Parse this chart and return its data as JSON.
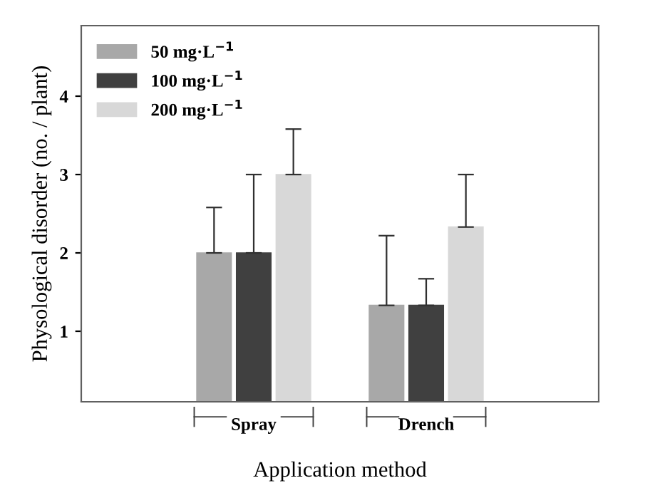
{
  "chart_data": {
    "type": "bar",
    "xlabel": "Application method",
    "ylabel": "Physological disorder (no. / plant)",
    "categories": [
      "Spray",
      "Drench"
    ],
    "series": [
      {
        "name": "50 mg·L$^{−1}$",
        "color": "#a8a8a8",
        "values": [
          2,
          1.33
        ],
        "errors": [
          [
            2,
            2.58
          ],
          [
            1.33,
            2.22
          ]
        ]
      },
      {
        "name": "100 mg·L$^{−1}$",
        "color": "#404040",
        "values": [
          2,
          1.33
        ],
        "errors": [
          [
            2,
            3.0
          ],
          [
            1.33,
            1.67
          ]
        ]
      },
      {
        "name": "200 mg·L$^{−1}$",
        "color": "#d8d8d8",
        "values": [
          3,
          2.33
        ],
        "errors": [
          [
            3,
            3.58
          ],
          [
            2.33,
            3.0
          ]
        ]
      }
    ],
    "ylim": [
      0.1,
      4.9
    ],
    "yticks": [
      1,
      2,
      3,
      4
    ],
    "legend": "top left",
    "grid": false
  }
}
